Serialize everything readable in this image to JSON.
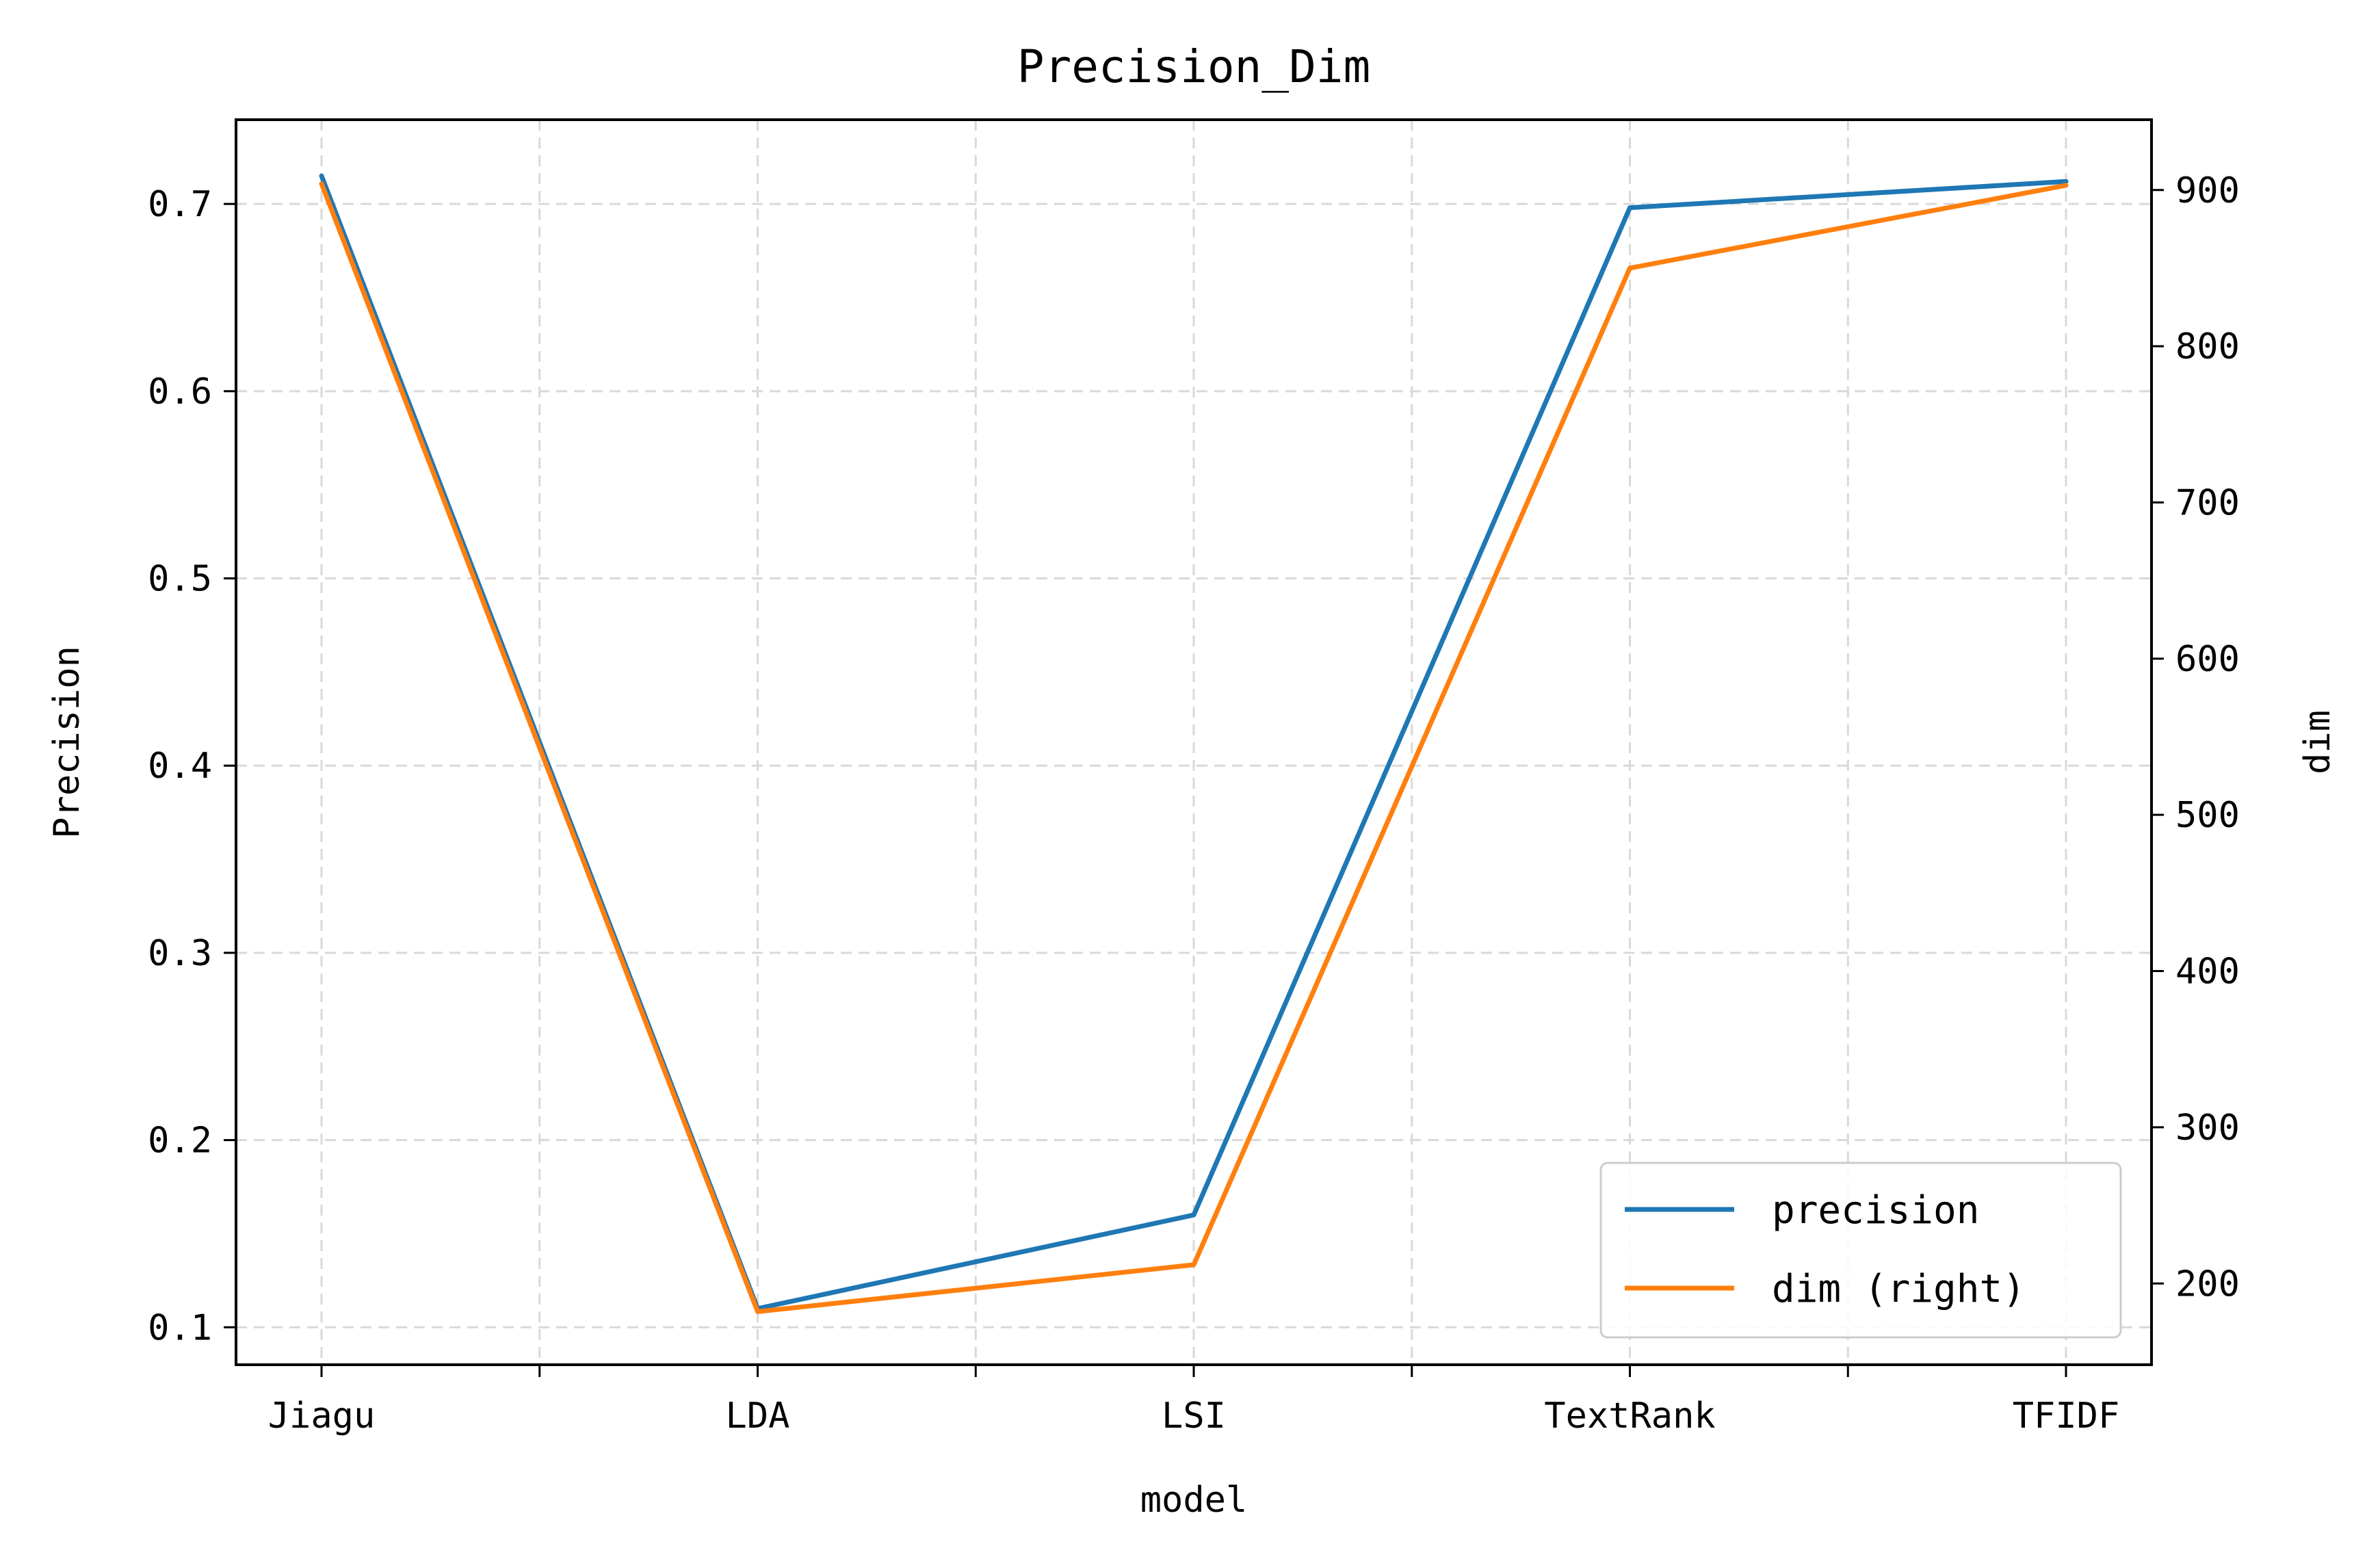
{
  "chart_data": {
    "type": "line",
    "title": "Precision_Dim",
    "xlabel": "model",
    "ylabel": "Precision",
    "y2label": "dim",
    "categories": [
      "Jiagu",
      "LDA",
      "LSI",
      "TextRank",
      "TFIDF"
    ],
    "ylim": [
      0.08,
      0.745
    ],
    "y2lim": [
      148,
      945
    ],
    "yticks": [
      "0.1",
      "0.2",
      "0.3",
      "0.4",
      "0.5",
      "0.6",
      "0.7"
    ],
    "y2ticks": [
      "200",
      "300",
      "400",
      "500",
      "600",
      "700",
      "800",
      "900"
    ],
    "grid": true,
    "legend_position": "lower-right",
    "series": [
      {
        "name": "precision",
        "axis": "left",
        "color": "#1f77b4",
        "values": [
          0.715,
          0.11,
          0.16,
          0.698,
          0.712
        ]
      },
      {
        "name": "dim (right)",
        "axis": "right",
        "color": "#ff7f0e",
        "values": [
          904,
          182,
          212,
          850,
          903
        ]
      }
    ]
  }
}
